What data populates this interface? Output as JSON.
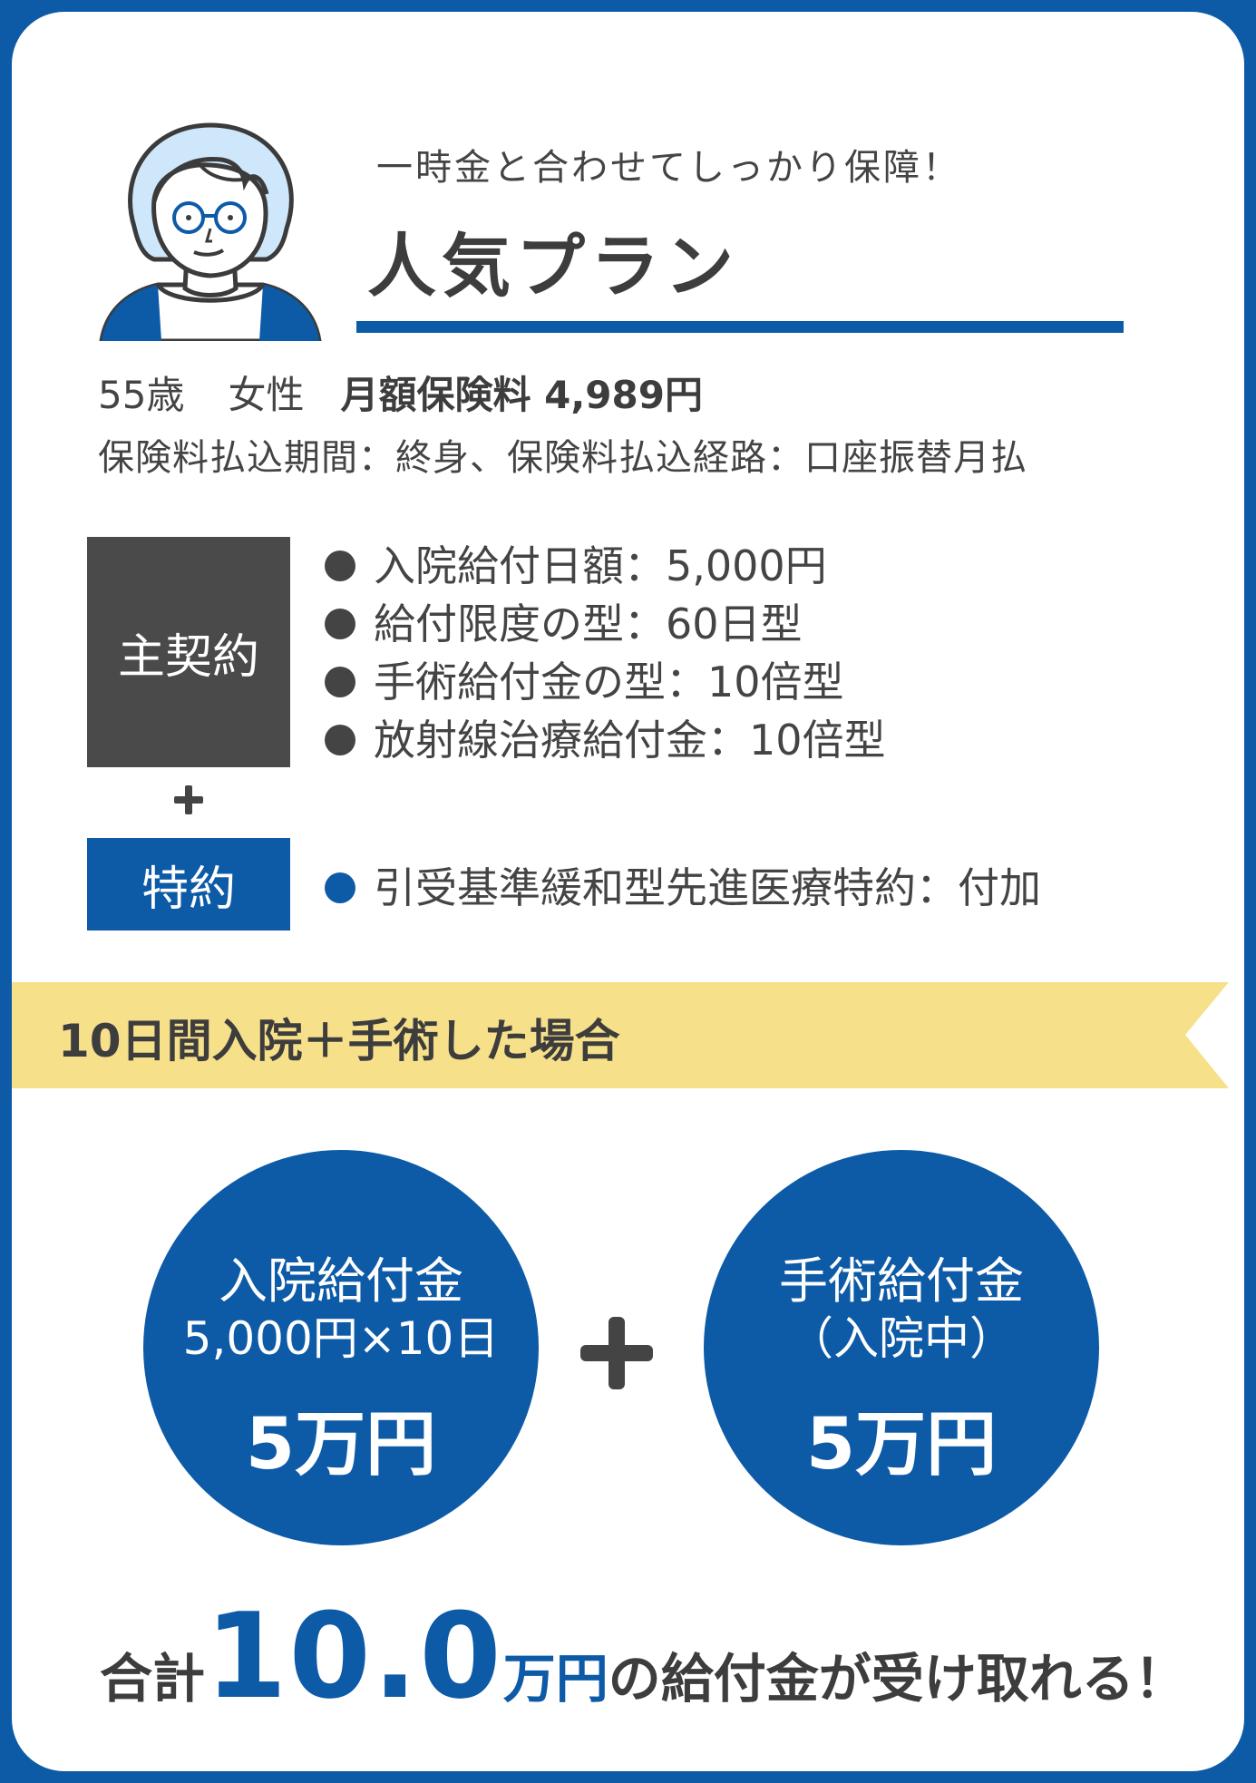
{
  "header": {
    "headline": "一時金と合わせてしっかり保障！",
    "title": "人気プラン"
  },
  "profile": {
    "age": "55歳",
    "gender": "女性",
    "premium": "月額保険料 4,989円",
    "payment_terms": "保険料払込期間：終身、保険料払込経路：口座振替月払"
  },
  "main_contract": {
    "label": "主契約",
    "items": [
      "入院給付日額：5,000円",
      "給付限度の型：60日型",
      "手術給付金の型：10倍型",
      "放射線治療給付金：10倍型"
    ]
  },
  "rider": {
    "label": "特約",
    "items": [
      "引受基準緩和型先進医療特約：付加"
    ]
  },
  "scenario": {
    "title": "10日間入院＋手術した場合"
  },
  "benefits": [
    {
      "line1": "入院給付金",
      "line2": "5,000円×10日",
      "amount": "5万円"
    },
    {
      "line1": "手術給付金",
      "line2": "（入院中）",
      "amount": "5万円"
    }
  ],
  "total": {
    "prefix": "合計",
    "amount": "10.0",
    "unit": "万円",
    "suffix": "の給付金が受け取れる！"
  },
  "colors": {
    "brand_blue": "#0d5aa7",
    "ribbon_yellow": "#f7e08a",
    "dark_gray": "#4a4a4a",
    "hair_light_blue": "#cfe7fa"
  },
  "icons": [
    "woman-avatar-icon",
    "plus-icon"
  ]
}
